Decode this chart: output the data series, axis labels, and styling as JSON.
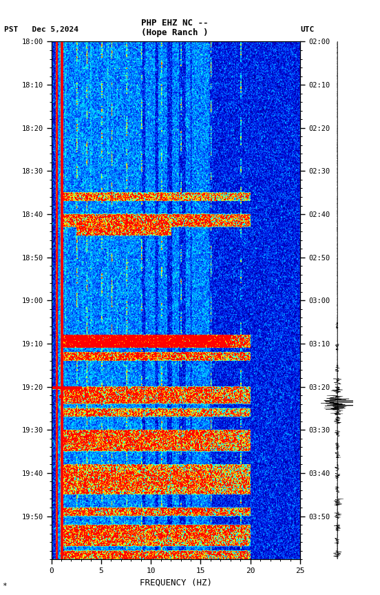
{
  "title_line1": "PHP EHZ NC --",
  "title_line2": "(Hope Ranch )",
  "left_label": "PST   Dec 5,2024",
  "right_label": "UTC",
  "pst_labels": [
    "18:00",
    "18:10",
    "18:20",
    "18:30",
    "18:40",
    "18:50",
    "19:00",
    "19:10",
    "19:20",
    "19:30",
    "19:40",
    "19:50"
  ],
  "utc_labels": [
    "02:00",
    "02:10",
    "02:20",
    "02:30",
    "02:40",
    "02:50",
    "03:00",
    "03:10",
    "03:20",
    "03:30",
    "03:40",
    "03:50"
  ],
  "xlabel": "FREQUENCY (HZ)",
  "freq_ticks": [
    0,
    5,
    10,
    15,
    20,
    25
  ],
  "freq_tick_labels": [
    "0",
    "5",
    "10",
    "15",
    "20",
    "25"
  ],
  "background_color": "#ffffff",
  "figsize": [
    5.52,
    8.64
  ],
  "dpi": 100
}
